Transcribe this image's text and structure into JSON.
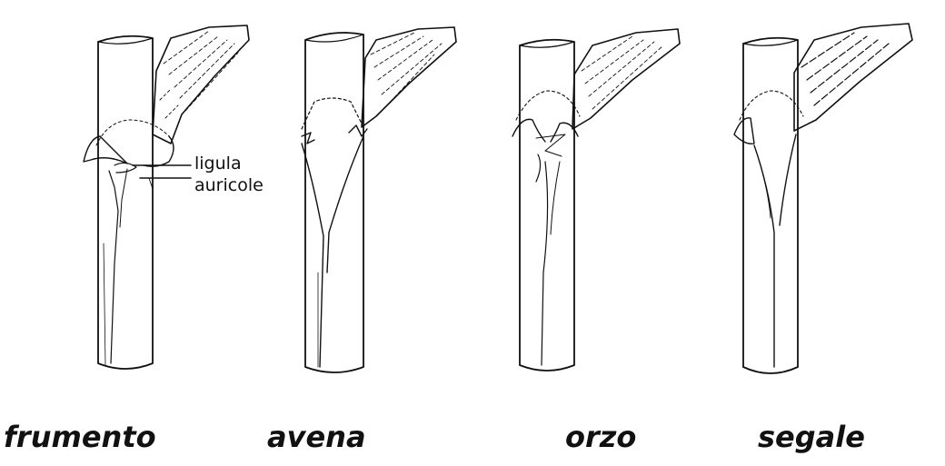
{
  "figure": {
    "captions": {
      "frumento": "frumento",
      "avena": "avena",
      "orzo": "orzo",
      "segale": "segale"
    },
    "callouts": {
      "ligula": "ligula",
      "auricole": "auricole"
    }
  }
}
